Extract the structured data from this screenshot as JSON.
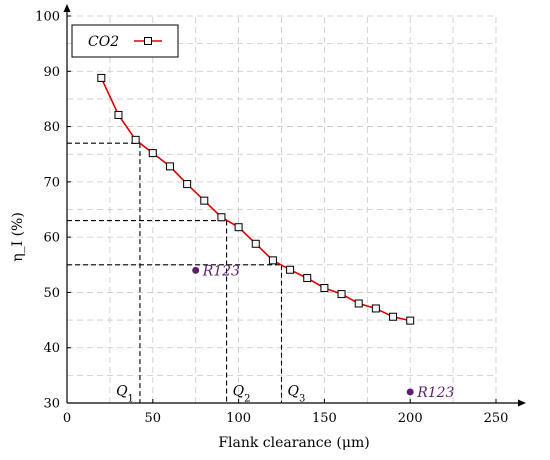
{
  "chart_data": {
    "type": "line",
    "xlabel": "Flank clearance (μm)",
    "ylabel": "η_I (%)",
    "xlim": [
      0,
      250
    ],
    "ylim": [
      30,
      100
    ],
    "xticks": [
      0,
      50,
      100,
      150,
      200,
      250
    ],
    "yticks": [
      30,
      40,
      50,
      60,
      70,
      80,
      90,
      100
    ],
    "grid": "dashed, minor and major",
    "legend_position": "top-left",
    "series": [
      {
        "name": "CO2",
        "color": "#e00000",
        "marker": "square",
        "x": [
          20,
          30,
          40,
          50,
          60,
          70,
          80,
          90,
          100,
          110,
          120,
          130,
          140,
          150,
          160,
          170,
          180,
          190,
          200
        ],
        "y": [
          88.8,
          82.1,
          77.6,
          75.2,
          72.8,
          69.6,
          66.6,
          63.6,
          61.8,
          58.8,
          55.8,
          54.1,
          52.6,
          50.8,
          49.7,
          48.0,
          47.1,
          45.6,
          44.9
        ]
      }
    ],
    "points": [
      {
        "label": "R123",
        "x": 75,
        "y": 54,
        "color": "#5b1f6e"
      },
      {
        "label": "R123",
        "x": 200,
        "y": 32,
        "color": "#5b1f6e"
      }
    ],
    "guides": [
      {
        "label": "Q1",
        "x": 42.5,
        "y": 77
      },
      {
        "label": "Q2",
        "x": 93,
        "y": 63
      },
      {
        "label": "Q3",
        "x": 125,
        "y": 55
      }
    ]
  }
}
